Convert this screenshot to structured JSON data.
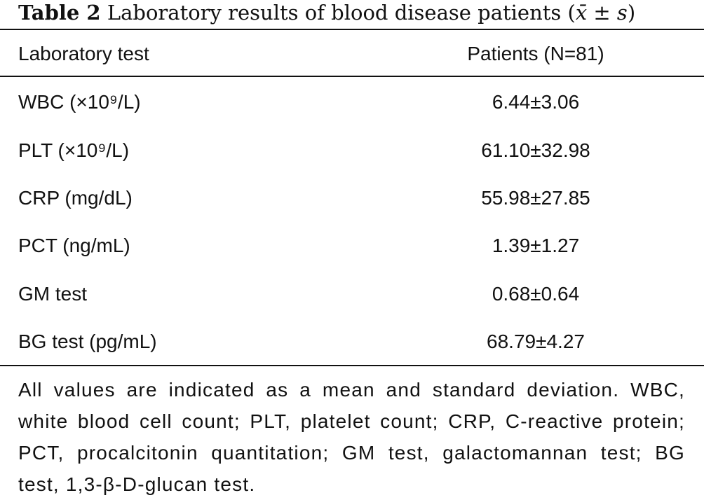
{
  "caption": {
    "label": "Table 2",
    "text": " Laboratory results of blood disease patients (",
    "formula": "x̄ ± s",
    "close": ")"
  },
  "table": {
    "headers": [
      "Laboratory test",
      "Patients (N=81)"
    ],
    "rows": [
      {
        "test": "WBC (×10⁹/L)",
        "value": "6.44±3.06"
      },
      {
        "test": "PLT (×10⁹/L)",
        "value": "61.10±32.98"
      },
      {
        "test": "CRP (mg/dL)",
        "value": "55.98±27.85"
      },
      {
        "test": "PCT (ng/mL)",
        "value": "1.39±1.27"
      },
      {
        "test": "GM test",
        "value": "0.68±0.64"
      },
      {
        "test": "BG test (pg/mL)",
        "value": "68.79±4.27"
      }
    ]
  },
  "footnote": "All values are indicated as a mean and standard deviation. WBC, white blood cell count; PLT, platelet count; CRP, C-reactive protein; PCT, procalcitonin quantitation; GM test, galactomannan test; BG test, 1,3-β-D-glucan test."
}
